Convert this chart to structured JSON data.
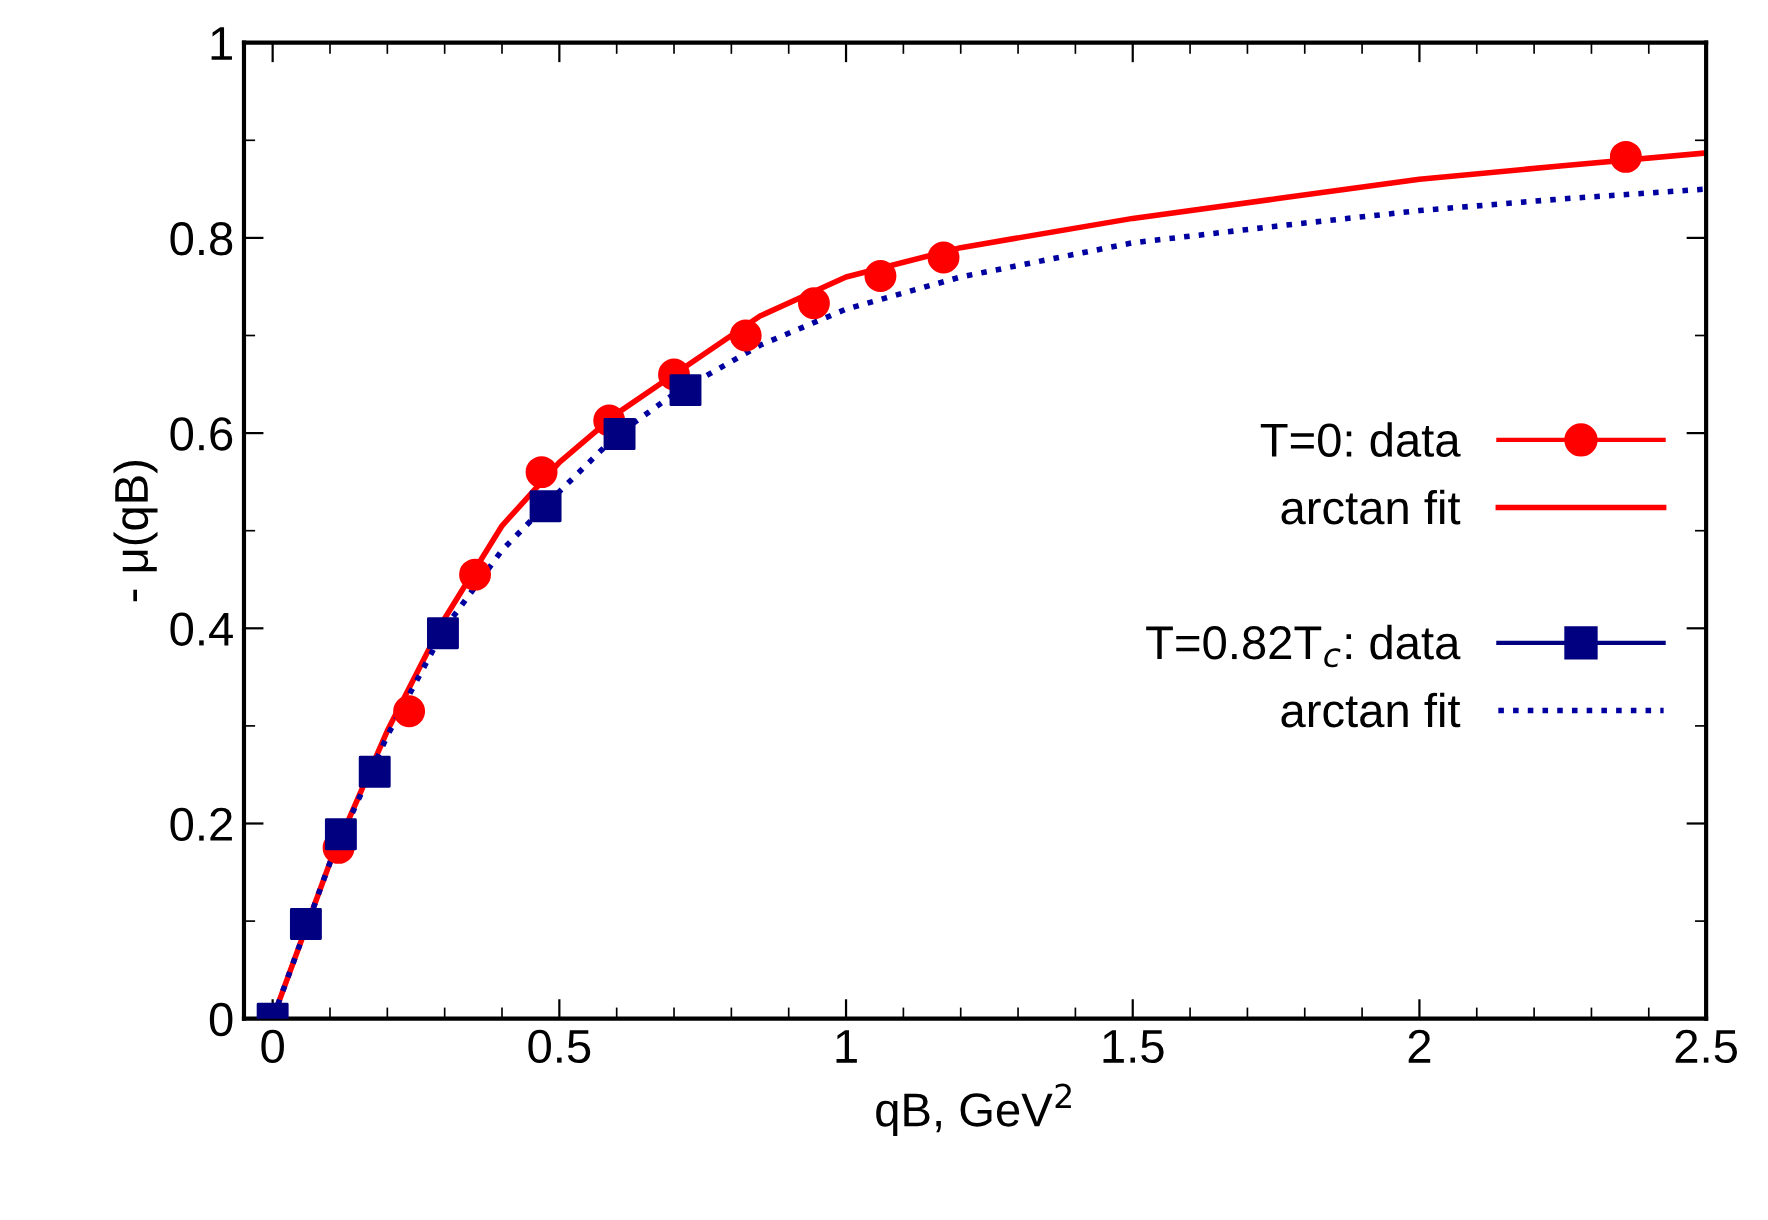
{
  "chart_data": {
    "type": "scatter",
    "xlabel": "qB, GeV$^{2}$",
    "ylabel": "- μ(qB)",
    "xlim": [
      -0.05,
      2.5
    ],
    "ylim": [
      0,
      1
    ],
    "xticks": [
      0,
      0.5,
      1,
      1.5,
      2,
      2.5
    ],
    "yticks": [
      0,
      0.2,
      0.4,
      0.6,
      0.8,
      1
    ],
    "grid": false,
    "legend": "right",
    "series": [
      {
        "name": "T=0: data",
        "marker": "circle",
        "color": "#ff0000",
        "x": [
          0.115,
          0.238,
          0.353,
          0.469,
          0.587,
          0.7,
          0.825,
          0.944,
          1.06,
          1.17,
          2.36
        ],
        "values": [
          0.175,
          0.315,
          0.455,
          0.56,
          0.613,
          0.66,
          0.7,
          0.733,
          0.761,
          0.78,
          0.883
        ]
      },
      {
        "name": "arctan fit",
        "type": "line",
        "line_style": "solid",
        "color": "#ff0000",
        "x": [
          0,
          0.1,
          0.2,
          0.3,
          0.4,
          0.5,
          0.6,
          0.7,
          0.85,
          1.0,
          1.2,
          1.5,
          1.75,
          2.0,
          2.25,
          2.5
        ],
        "values": [
          0,
          0.16,
          0.295,
          0.41,
          0.505,
          0.57,
          0.62,
          0.66,
          0.72,
          0.76,
          0.79,
          0.82,
          0.84,
          0.86,
          0.874,
          0.887
        ]
      },
      {
        "name": "T=0.82T$_{c}$: data",
        "marker": "square",
        "color": "#000080",
        "x": [
          0,
          0.058,
          0.119,
          0.178,
          0.297,
          0.476,
          0.605,
          0.72
        ],
        "values": [
          0,
          0.097,
          0.189,
          0.253,
          0.395,
          0.525,
          0.599,
          0.644
        ]
      },
      {
        "name": "arctan fit",
        "type": "line",
        "line_style": "dotted",
        "color": "#0000a0",
        "x": [
          0,
          0.1,
          0.2,
          0.3,
          0.4,
          0.5,
          0.6,
          0.7,
          0.85,
          1.0,
          1.2,
          1.5,
          1.75,
          2.0,
          2.25,
          2.5
        ],
        "values": [
          0,
          0.16,
          0.29,
          0.4,
          0.48,
          0.54,
          0.598,
          0.64,
          0.69,
          0.727,
          0.76,
          0.795,
          0.812,
          0.828,
          0.84,
          0.85
        ]
      }
    ]
  }
}
